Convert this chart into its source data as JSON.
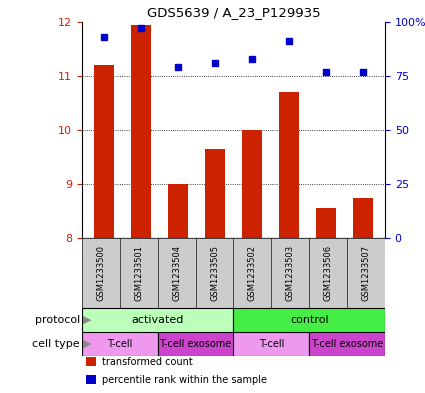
{
  "title": "GDS5639 / A_23_P129935",
  "samples": [
    "GSM1233500",
    "GSM1233501",
    "GSM1233504",
    "GSM1233505",
    "GSM1233502",
    "GSM1233503",
    "GSM1233506",
    "GSM1233507"
  ],
  "transformed_count": [
    11.2,
    11.95,
    9.0,
    9.65,
    10.0,
    10.7,
    8.55,
    8.75
  ],
  "percentile_rank": [
    93,
    97,
    79,
    81,
    83,
    91,
    77,
    77
  ],
  "ylim_left": [
    8,
    12
  ],
  "ylim_right": [
    0,
    100
  ],
  "yticks_left": [
    8,
    9,
    10,
    11,
    12
  ],
  "yticks_right": [
    0,
    25,
    50,
    75,
    100
  ],
  "ytick_labels_right": [
    "0",
    "25",
    "50",
    "75",
    "100%"
  ],
  "bar_color": "#cc2200",
  "dot_color": "#0000cc",
  "bar_bottom": 8,
  "protocol_groups": [
    {
      "label": "activated",
      "start": 0,
      "end": 4,
      "color": "#bbffbb"
    },
    {
      "label": "control",
      "start": 4,
      "end": 8,
      "color": "#44ee44"
    }
  ],
  "celltype_groups": [
    {
      "label": "T-cell",
      "start": 0,
      "end": 2,
      "color": "#ee99ee"
    },
    {
      "label": "T-cell exosome",
      "start": 2,
      "end": 4,
      "color": "#cc44cc"
    },
    {
      "label": "T-cell",
      "start": 4,
      "end": 6,
      "color": "#ee99ee"
    },
    {
      "label": "T-cell exosome",
      "start": 6,
      "end": 8,
      "color": "#cc44cc"
    }
  ],
  "sample_bg_color": "#cccccc",
  "legend_items": [
    {
      "color": "#cc2200",
      "label": "transformed count"
    },
    {
      "color": "#0000cc",
      "label": "percentile rank within the sample"
    }
  ],
  "protocol_label": "protocol",
  "celltype_label": "cell type",
  "left_tick_color": "#cc2200",
  "right_tick_color": "#0000cc",
  "arrow_color": "#888888"
}
